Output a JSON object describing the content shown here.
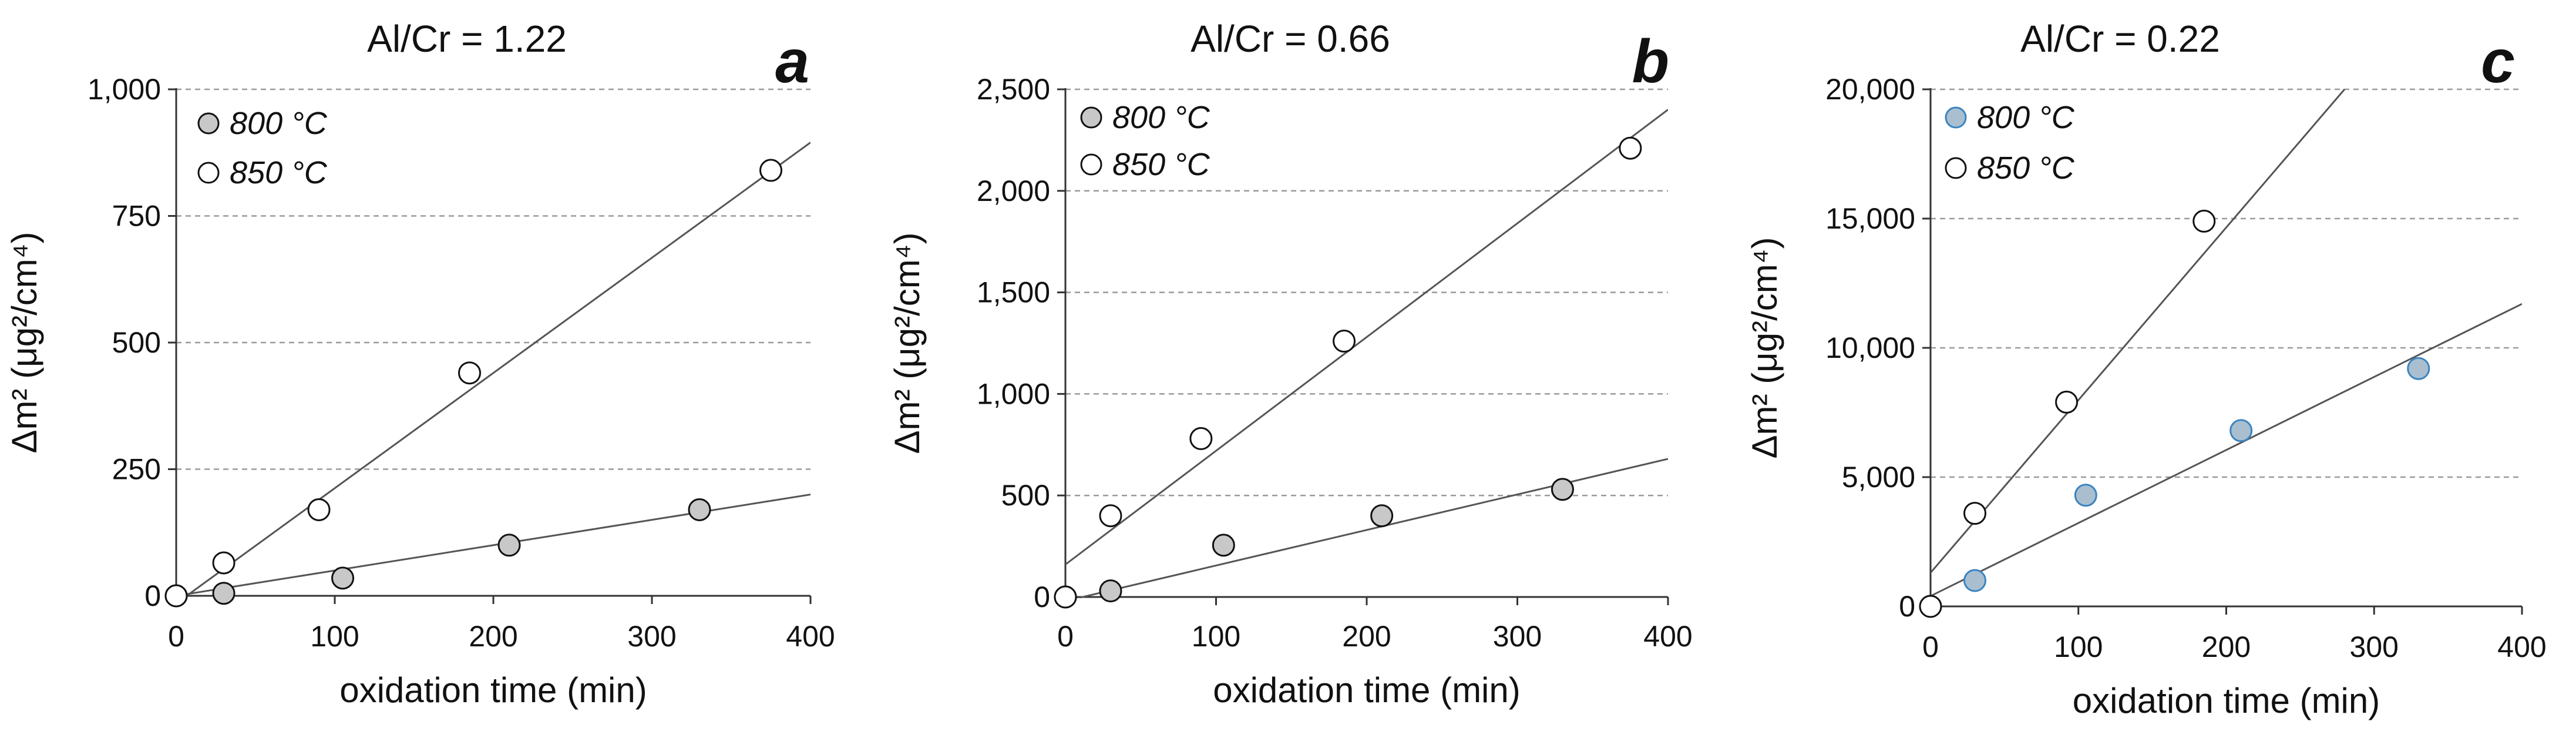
{
  "chart_data": [
    {
      "type": "scatter",
      "panel_label": "a",
      "title": "Al/Cr = 1.22",
      "xlabel": "oxidation time (min)",
      "ylabel": "Δm² (μg²/cm⁴)",
      "xlim": [
        0,
        400
      ],
      "ylim": [
        0,
        1000
      ],
      "xticks": [
        0,
        100,
        200,
        300,
        400
      ],
      "yticks": [
        0,
        250,
        500,
        750,
        1000
      ],
      "xtick_labels": [
        "0",
        "100",
        "200",
        "300",
        "400"
      ],
      "ytick_labels": [
        "0",
        "250",
        "500",
        "750",
        "1,000"
      ],
      "legend_position": "top-left",
      "series": [
        {
          "name": "800 °C",
          "marker_fill": "#c8c8c8",
          "marker_edge": "#111111",
          "x": [
            0,
            30,
            105,
            210,
            330
          ],
          "y": [
            0,
            5,
            35,
            100,
            170
          ],
          "fit": [
            [
              0,
              0
            ],
            [
              400,
              200
            ]
          ]
        },
        {
          "name": "850 °C",
          "marker_fill": "#ffffff",
          "marker_edge": "#111111",
          "x": [
            0,
            30,
            90,
            185,
            375
          ],
          "y": [
            0,
            65,
            170,
            440,
            840
          ],
          "fit": [
            [
              0,
              -15
            ],
            [
              400,
              895
            ]
          ]
        }
      ]
    },
    {
      "type": "scatter",
      "panel_label": "b",
      "title": "Al/Cr = 0.66",
      "xlabel": "oxidation time (min)",
      "ylabel": "Δm² (μg²/cm⁴)",
      "xlim": [
        0,
        400
      ],
      "ylim": [
        0,
        2500
      ],
      "xticks": [
        0,
        100,
        200,
        300,
        400
      ],
      "yticks": [
        0,
        500,
        1000,
        1500,
        2000,
        2500
      ],
      "xtick_labels": [
        "0",
        "100",
        "200",
        "300",
        "400"
      ],
      "ytick_labels": [
        "0",
        "500",
        "1,000",
        "1,500",
        "2,000",
        "2,500"
      ],
      "legend_position": "top-left",
      "series": [
        {
          "name": "800 °C",
          "marker_fill": "#c8c8c8",
          "marker_edge": "#111111",
          "x": [
            0,
            30,
            105,
            210,
            330
          ],
          "y": [
            0,
            30,
            255,
            400,
            530
          ],
          "fit": [
            [
              0,
              -20
            ],
            [
              400,
              680
            ]
          ]
        },
        {
          "name": "850 °C",
          "marker_fill": "#ffffff",
          "marker_edge": "#111111",
          "x": [
            0,
            30,
            90,
            185,
            375
          ],
          "y": [
            0,
            400,
            780,
            1260,
            2210
          ],
          "fit": [
            [
              0,
              160
            ],
            [
              400,
              2400
            ]
          ]
        }
      ]
    },
    {
      "type": "scatter",
      "panel_label": "c",
      "title": "Al/Cr = 0.22",
      "xlabel": "oxidation time (min)",
      "ylabel": "Δm² (μg²/cm⁴)",
      "xlim": [
        0,
        400
      ],
      "ylim": [
        0,
        20000
      ],
      "xticks": [
        0,
        100,
        200,
        300,
        400
      ],
      "yticks": [
        0,
        5000,
        10000,
        15000,
        20000
      ],
      "xtick_labels": [
        "0",
        "100",
        "200",
        "300",
        "400"
      ],
      "ytick_labels": [
        "0",
        "5,000",
        "10,000",
        "15,000",
        "20,000"
      ],
      "legend_position": "top-left",
      "series": [
        {
          "name": "800 °C",
          "marker_fill": "#a9bfd0",
          "marker_edge": "#3b84c0",
          "x": [
            0,
            30,
            105,
            210,
            330
          ],
          "y": [
            0,
            1000,
            4300,
            6800,
            9200
          ],
          "fit": [
            [
              0,
              400
            ],
            [
              400,
              11700
            ]
          ]
        },
        {
          "name": "850 °C",
          "marker_fill": "#ffffff",
          "marker_edge": "#111111",
          "x": [
            0,
            30,
            92,
            185
          ],
          "y": [
            0,
            3600,
            7900,
            14900
          ],
          "fit": [
            [
              0,
              1300
            ],
            [
              280,
              20000
            ]
          ]
        }
      ]
    }
  ],
  "colors": {
    "axis": "#333333",
    "grid": "#9a9a9a",
    "fit_line": "#555555",
    "text": "#111111"
  }
}
